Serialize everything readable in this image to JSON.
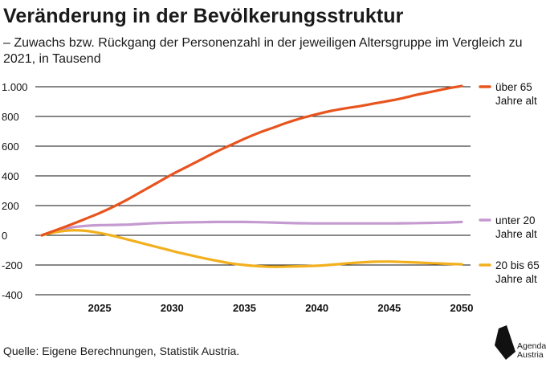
{
  "title": "Veränderung in der Bevölkerungsstruktur",
  "subtitle": "– Zuwachs bzw. Rückgang der Personenzahl in der jeweiligen Altersgruppe im Vergleich zu 2021, in Tausend",
  "source": "Quelle: Eigene Berechnungen, Statistik Austria.",
  "logo": {
    "line1": "Agenda",
    "line2": "Austria"
  },
  "chart_data": {
    "type": "line",
    "title": "Veränderung in der Bevölkerungsstruktur",
    "xlabel": "",
    "ylabel": "",
    "xlim": [
      2021,
      2050
    ],
    "ylim": [
      -400,
      1000
    ],
    "x_ticks": [
      2025,
      2030,
      2035,
      2040,
      2045,
      2050
    ],
    "y_ticks": [
      -400,
      -200,
      0,
      200,
      400,
      600,
      800,
      1000
    ],
    "y_tick_labels": [
      "-400",
      "-200",
      "0",
      "200",
      "400",
      "600",
      "800",
      "1.000"
    ],
    "grid": true,
    "legend_position": "right, next to line ends",
    "x": [
      2021,
      2022,
      2023,
      2024,
      2025,
      2026,
      2027,
      2028,
      2029,
      2030,
      2031,
      2032,
      2033,
      2034,
      2035,
      2036,
      2037,
      2038,
      2039,
      2040,
      2041,
      2042,
      2043,
      2044,
      2045,
      2046,
      2047,
      2048,
      2049,
      2050
    ],
    "series": [
      {
        "name": "über 65 Jahre alt",
        "label_lines": [
          "über 65",
          "Jahre alt"
        ],
        "color": "#e8541e",
        "values": [
          0,
          35,
          72,
          110,
          150,
          195,
          245,
          300,
          355,
          410,
          460,
          510,
          560,
          605,
          650,
          690,
          725,
          760,
          790,
          815,
          838,
          855,
          870,
          888,
          905,
          925,
          948,
          968,
          988,
          1005
        ]
      },
      {
        "name": "unter 20 Jahre alt",
        "label_lines": [
          "unter 20",
          "Jahre alt"
        ],
        "color": "#c49ad0",
        "values": [
          0,
          30,
          52,
          63,
          68,
          70,
          72,
          78,
          82,
          85,
          87,
          88,
          90,
          90,
          90,
          88,
          86,
          83,
          81,
          80,
          80,
          80,
          80,
          80,
          80,
          81,
          82,
          84,
          86,
          90
        ]
      },
      {
        "name": "20 bis 65 Jahre alt",
        "label_lines": [
          "20 bis 65",
          "Jahre alt"
        ],
        "color": "#f2b01e",
        "values": [
          0,
          22,
          33,
          30,
          15,
          -5,
          -30,
          -55,
          -80,
          -105,
          -128,
          -150,
          -170,
          -188,
          -200,
          -208,
          -212,
          -210,
          -208,
          -205,
          -198,
          -190,
          -183,
          -178,
          -177,
          -180,
          -184,
          -188,
          -192,
          -195
        ]
      }
    ]
  }
}
